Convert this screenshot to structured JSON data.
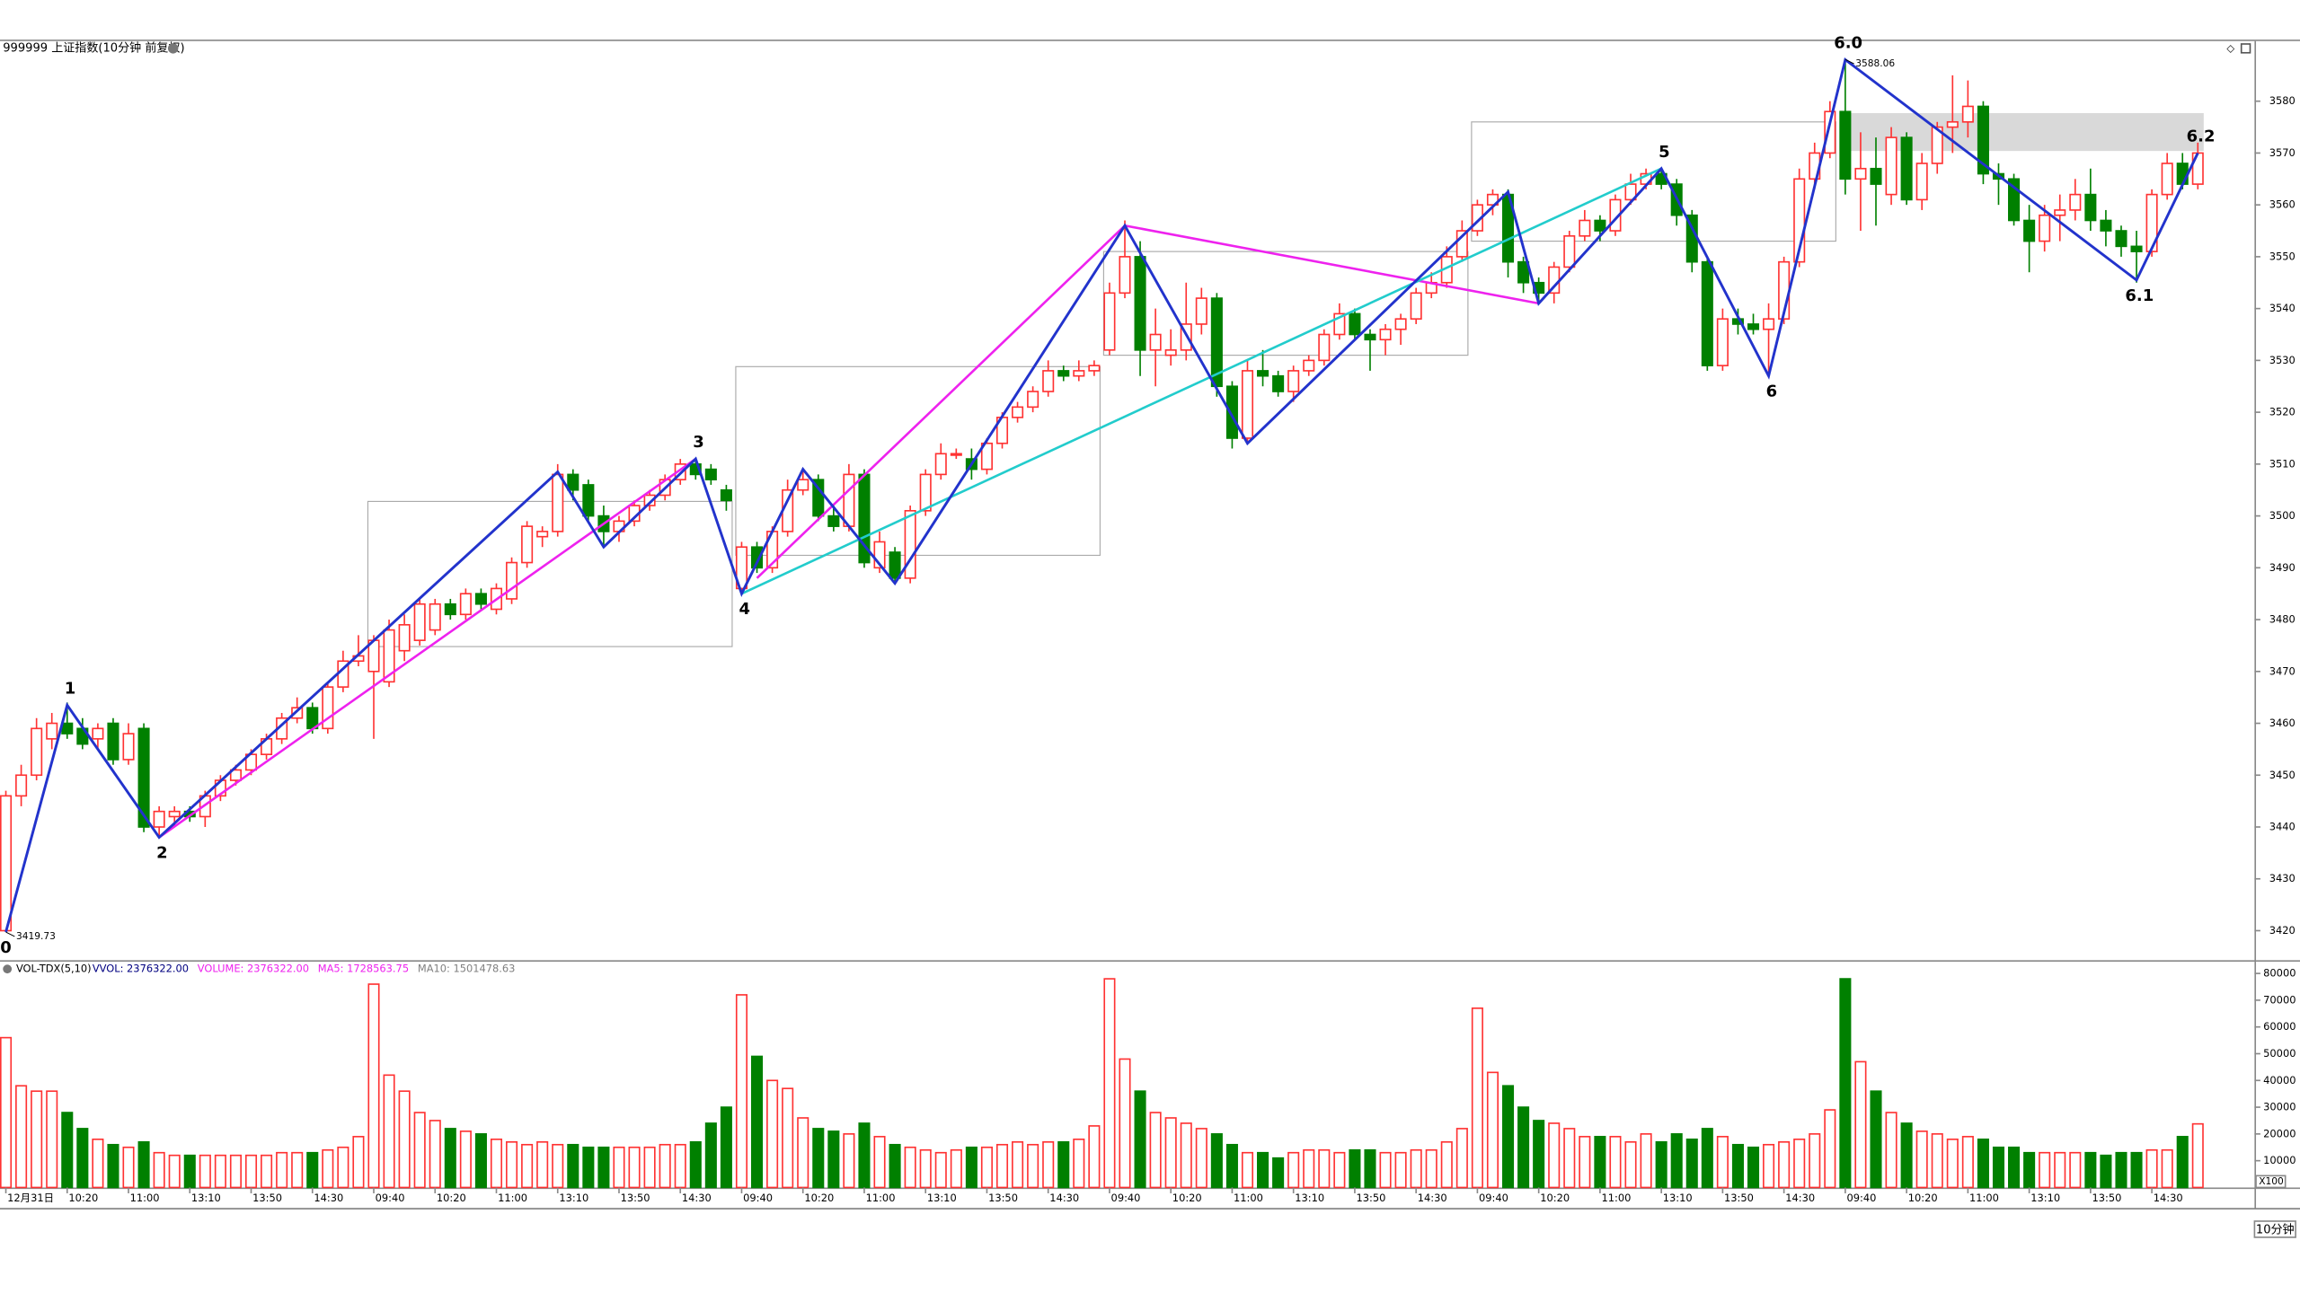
{
  "chart_data": {
    "type": "candlestick",
    "title": "999999 上证指数(10分钟 前复权)",
    "period_label": "10分钟",
    "up_color": "#ff3232",
    "down_color": "#008000",
    "ylim": [
      3414.3,
      3591.6
    ],
    "yticks": [
      3420,
      3430,
      3440,
      3450,
      3460,
      3470,
      3480,
      3490,
      3500,
      3510,
      3520,
      3530,
      3540,
      3550,
      3560,
      3570,
      3580
    ],
    "ohlc": [
      [
        3420,
        3447,
        3419.73,
        3446
      ],
      [
        3446,
        3452,
        3444,
        3450
      ],
      [
        3450,
        3461,
        3449,
        3459
      ],
      [
        3457,
        3462,
        3455,
        3460
      ],
      [
        3460,
        3464,
        3457,
        3458
      ],
      [
        3459,
        3461,
        3455,
        3456
      ],
      [
        3457,
        3460,
        3455,
        3459
      ],
      [
        3460,
        3461,
        3452,
        3453
      ],
      [
        3453,
        3460,
        3452,
        3458
      ],
      [
        3459,
        3460,
        3439,
        3440
      ],
      [
        3440,
        3444,
        3438,
        3443
      ],
      [
        3442,
        3444,
        3440,
        3443
      ],
      [
        3443,
        3444,
        3441,
        3442
      ],
      [
        3442,
        3447,
        3440,
        3446
      ],
      [
        3446,
        3450,
        3445,
        3449
      ],
      [
        3449,
        3452,
        3448,
        3451
      ],
      [
        3451,
        3455,
        3450,
        3454
      ],
      [
        3454,
        3458,
        3453,
        3457
      ],
      [
        3457,
        3462,
        3456,
        3461
      ],
      [
        3461,
        3465,
        3460,
        3463
      ],
      [
        3463,
        3464,
        3458,
        3459
      ],
      [
        3459,
        3468,
        3458,
        3467
      ],
      [
        3467,
        3474,
        3466,
        3472
      ],
      [
        3472,
        3477,
        3471,
        3473
      ],
      [
        3470,
        3477,
        3457,
        3476
      ],
      [
        3468,
        3480,
        3467,
        3478
      ],
      [
        3474,
        3481,
        3472,
        3479
      ],
      [
        3476,
        3484,
        3475,
        3483
      ],
      [
        3478,
        3484,
        3477,
        3483
      ],
      [
        3483,
        3484,
        3480,
        3481
      ],
      [
        3481,
        3486,
        3480,
        3485
      ],
      [
        3485,
        3486,
        3482,
        3483
      ],
      [
        3482,
        3487,
        3481,
        3486
      ],
      [
        3484,
        3492,
        3483,
        3491
      ],
      [
        3491,
        3499,
        3490,
        3498
      ],
      [
        3496,
        3498,
        3494,
        3497
      ],
      [
        3497,
        3510,
        3496,
        3508
      ],
      [
        3508,
        3509,
        3503,
        3505
      ],
      [
        3506,
        3507,
        3499,
        3500
      ],
      [
        3500,
        3502,
        3494,
        3497
      ],
      [
        3497,
        3500,
        3495,
        3499
      ],
      [
        3499,
        3503,
        3498,
        3502
      ],
      [
        3502,
        3505,
        3501,
        3504
      ],
      [
        3504,
        3508,
        3503,
        3507
      ],
      [
        3507,
        3511,
        3506,
        3510
      ],
      [
        3510,
        3511,
        3507,
        3508
      ],
      [
        3509,
        3510,
        3506,
        3507
      ],
      [
        3505,
        3506,
        3501,
        3503
      ],
      [
        3486,
        3495,
        3485,
        3494
      ],
      [
        3494,
        3495,
        3489,
        3490
      ],
      [
        3490,
        3498,
        3489,
        3497
      ],
      [
        3497,
        3507,
        3496,
        3505
      ],
      [
        3505,
        3509,
        3504,
        3507
      ],
      [
        3507,
        3508,
        3499,
        3500
      ],
      [
        3500,
        3502,
        3497,
        3498
      ],
      [
        3498,
        3510,
        3497,
        3508
      ],
      [
        3508,
        3509,
        3490,
        3491
      ],
      [
        3490,
        3497,
        3489,
        3495
      ],
      [
        3493,
        3494,
        3487,
        3488
      ],
      [
        3488,
        3502,
        3487,
        3501
      ],
      [
        3501,
        3509,
        3500,
        3508
      ],
      [
        3508,
        3514,
        3507,
        3512
      ],
      [
        3512,
        3513,
        3511,
        3512
      ],
      [
        3511,
        3513,
        3507,
        3509
      ],
      [
        3509,
        3515,
        3508,
        3514
      ],
      [
        3514,
        3520,
        3513,
        3519
      ],
      [
        3519,
        3522,
        3518,
        3521
      ],
      [
        3521,
        3525,
        3520,
        3524
      ],
      [
        3524,
        3530,
        3523,
        3528
      ],
      [
        3528,
        3529,
        3526,
        3527
      ],
      [
        3527,
        3530,
        3526,
        3528
      ],
      [
        3528,
        3530,
        3527,
        3529
      ],
      [
        3532,
        3545,
        3531,
        3543
      ],
      [
        3543,
        3557,
        3542,
        3550
      ],
      [
        3550,
        3553,
        3527,
        3532
      ],
      [
        3532,
        3540,
        3525,
        3535
      ],
      [
        3531,
        3536,
        3529,
        3532
      ],
      [
        3532,
        3545,
        3530,
        3537
      ],
      [
        3537,
        3544,
        3535,
        3542
      ],
      [
        3542,
        3543,
        3523,
        3525
      ],
      [
        3525,
        3526,
        3513,
        3515
      ],
      [
        3515,
        3530,
        3514,
        3528
      ],
      [
        3528,
        3532,
        3525,
        3527
      ],
      [
        3527,
        3528,
        3523,
        3524
      ],
      [
        3524,
        3529,
        3522,
        3528
      ],
      [
        3528,
        3531,
        3527,
        3530
      ],
      [
        3530,
        3536,
        3529,
        3535
      ],
      [
        3535,
        3541,
        3534,
        3539
      ],
      [
        3539,
        3540,
        3534,
        3535
      ],
      [
        3535,
        3536,
        3528,
        3534
      ],
      [
        3534,
        3537,
        3531,
        3536
      ],
      [
        3536,
        3539,
        3533,
        3538
      ],
      [
        3538,
        3544,
        3537,
        3543
      ],
      [
        3543,
        3547,
        3542,
        3545
      ],
      [
        3545,
        3552,
        3544,
        3550
      ],
      [
        3550,
        3557,
        3549,
        3555
      ],
      [
        3555,
        3561,
        3554,
        3560
      ],
      [
        3560,
        3563,
        3558,
        3562
      ],
      [
        3562,
        3563,
        3546,
        3549
      ],
      [
        3549,
        3550,
        3543,
        3545
      ],
      [
        3545,
        3546,
        3541,
        3543
      ],
      [
        3543,
        3549,
        3541,
        3548
      ],
      [
        3548,
        3555,
        3547,
        3554
      ],
      [
        3554,
        3559,
        3553,
        3557
      ],
      [
        3557,
        3558,
        3553,
        3555
      ],
      [
        3555,
        3562,
        3554,
        3561
      ],
      [
        3561,
        3566,
        3560,
        3564
      ],
      [
        3564,
        3567,
        3563,
        3566
      ],
      [
        3566,
        3567,
        3563,
        3564
      ],
      [
        3564,
        3565,
        3556,
        3558
      ],
      [
        3558,
        3559,
        3547,
        3549
      ],
      [
        3549,
        3550,
        3528,
        3529
      ],
      [
        3529,
        3540,
        3528,
        3538
      ],
      [
        3538,
        3540,
        3535,
        3537
      ],
      [
        3537,
        3539,
        3535,
        3536
      ],
      [
        3536,
        3541,
        3527,
        3538
      ],
      [
        3538,
        3550,
        3537,
        3549
      ],
      [
        3549,
        3567,
        3548,
        3565
      ],
      [
        3565,
        3572,
        3563,
        3570
      ],
      [
        3570,
        3580,
        3569,
        3578
      ],
      [
        3578,
        3588.06,
        3562,
        3565
      ],
      [
        3565,
        3574,
        3555,
        3567
      ],
      [
        3567,
        3573,
        3556,
        3564
      ],
      [
        3562,
        3575,
        3560,
        3573
      ],
      [
        3573,
        3574,
        3560,
        3561
      ],
      [
        3561,
        3570,
        3559,
        3568
      ],
      [
        3568,
        3576,
        3566,
        3575
      ],
      [
        3575,
        3585,
        3570,
        3576
      ],
      [
        3576,
        3584,
        3573,
        3579
      ],
      [
        3579,
        3580,
        3564,
        3566
      ],
      [
        3566,
        3568,
        3560,
        3565
      ],
      [
        3565,
        3566,
        3556,
        3557
      ],
      [
        3557,
        3560,
        3547,
        3553
      ],
      [
        3553,
        3560,
        3551,
        3558
      ],
      [
        3558,
        3562,
        3553,
        3559
      ],
      [
        3559,
        3565,
        3557,
        3562
      ],
      [
        3562,
        3567,
        3555,
        3557
      ],
      [
        3557,
        3559,
        3552,
        3555
      ],
      [
        3555,
        3556,
        3550,
        3552
      ],
      [
        3552,
        3555,
        3545,
        3551
      ],
      [
        3551,
        3563,
        3550,
        3562
      ],
      [
        3562,
        3570,
        3561,
        3568
      ],
      [
        3568,
        3570,
        3563,
        3564
      ],
      [
        3564,
        3572,
        3563,
        3570
      ]
    ],
    "annotations": [
      {
        "bar": 0,
        "price": 3419.73,
        "label": "3419.73"
      },
      {
        "bar": 120,
        "price": 3588.06,
        "label": "3588.06"
      }
    ],
    "zigzag": {
      "color": "#2233cc",
      "points": [
        {
          "bar": 0,
          "price": 3419.73,
          "label": "0"
        },
        {
          "bar": 4,
          "price": 3463.5,
          "label": "1"
        },
        {
          "bar": 10,
          "price": 3438,
          "label": "2"
        },
        {
          "bar": 36,
          "price": 3508.5,
          "label": null
        },
        {
          "bar": 39,
          "price": 3494,
          "label": null
        },
        {
          "bar": 45,
          "price": 3511,
          "label": "3"
        },
        {
          "bar": 48,
          "price": 3485,
          "label": "4"
        },
        {
          "bar": 52,
          "price": 3509,
          "label": null
        },
        {
          "bar": 58,
          "price": 3487,
          "label": null
        },
        {
          "bar": 73,
          "price": 3556,
          "label": null
        },
        {
          "bar": 81,
          "price": 3514,
          "label": null
        },
        {
          "bar": 98,
          "price": 3562.5,
          "label": null
        },
        {
          "bar": 100,
          "price": 3541,
          "label": null
        },
        {
          "bar": 108,
          "price": 3567,
          "label": "5"
        },
        {
          "bar": 115,
          "price": 3527,
          "label": "6"
        },
        {
          "bar": 120,
          "price": 3588,
          "label": "6.0"
        },
        {
          "bar": 139,
          "price": 3545.5,
          "label": "6.1"
        },
        {
          "bar": 143,
          "price": 3570,
          "label": "6.2"
        }
      ]
    },
    "trend_lines": [
      {
        "color": "#ee22ee",
        "points": [
          [
            10,
            3438
          ],
          [
            45,
            3511
          ]
        ]
      },
      {
        "color": "#ee22ee",
        "points": [
          [
            49,
            3488
          ],
          [
            73,
            3556
          ],
          [
            100,
            3541
          ]
        ]
      },
      {
        "color": "#22cccc",
        "points": [
          [
            48,
            3485
          ],
          [
            108,
            3567
          ]
        ]
      }
    ],
    "boxes": [
      {
        "bars": [
          24,
          47
        ],
        "prices": [
          3474.8,
          3502.8
        ],
        "filled": false
      },
      {
        "bars": [
          48,
          71
        ],
        "prices": [
          3492.4,
          3528.8
        ],
        "filled": false
      },
      {
        "bars": [
          72,
          95
        ],
        "prices": [
          3531,
          3551
        ],
        "filled": false
      },
      {
        "bars": [
          96,
          119
        ],
        "prices": [
          3553,
          3576
        ],
        "filled": false
      },
      {
        "bars": [
          120,
          143
        ],
        "prices": [
          3570.4,
          3577.7
        ],
        "filled": true
      }
    ],
    "x_labels": [
      {
        "bar": 0,
        "label": "12月31日"
      },
      {
        "bar": 4,
        "label": "10:20"
      },
      {
        "bar": 8,
        "label": "11:00"
      },
      {
        "bar": 12,
        "label": "13:10"
      },
      {
        "bar": 16,
        "label": "13:50"
      },
      {
        "bar": 20,
        "label": "14:30"
      },
      {
        "bar": 24,
        "label": "09:40"
      },
      {
        "bar": 28,
        "label": "10:20"
      },
      {
        "bar": 32,
        "label": "11:00"
      },
      {
        "bar": 36,
        "label": "13:10"
      },
      {
        "bar": 40,
        "label": "13:50"
      },
      {
        "bar": 44,
        "label": "14:30"
      },
      {
        "bar": 48,
        "label": "09:40"
      },
      {
        "bar": 52,
        "label": "10:20"
      },
      {
        "bar": 56,
        "label": "11:00"
      },
      {
        "bar": 60,
        "label": "13:10"
      },
      {
        "bar": 64,
        "label": "13:50"
      },
      {
        "bar": 68,
        "label": "14:30"
      },
      {
        "bar": 72,
        "label": "09:40"
      },
      {
        "bar": 76,
        "label": "10:20"
      },
      {
        "bar": 80,
        "label": "11:00"
      },
      {
        "bar": 84,
        "label": "13:10"
      },
      {
        "bar": 88,
        "label": "13:50"
      },
      {
        "bar": 92,
        "label": "14:30"
      },
      {
        "bar": 96,
        "label": "09:40"
      },
      {
        "bar": 100,
        "label": "10:20"
      },
      {
        "bar": 104,
        "label": "11:00"
      },
      {
        "bar": 108,
        "label": "13:10"
      },
      {
        "bar": 112,
        "label": "13:50"
      },
      {
        "bar": 116,
        "label": "14:30"
      },
      {
        "bar": 120,
        "label": "09:40"
      },
      {
        "bar": 124,
        "label": "10:20"
      },
      {
        "bar": 128,
        "label": "11:00"
      },
      {
        "bar": 132,
        "label": "13:10"
      },
      {
        "bar": 136,
        "label": "13:50"
      },
      {
        "bar": 140,
        "label": "14:30"
      }
    ],
    "volume": {
      "title": "VOL-TDX(5,10)",
      "legend": [
        {
          "label": "VVOL: 2376322.00",
          "color": "#000080"
        },
        {
          "label": "VOLUME: 2376322.00",
          "color": "#ee22ee"
        },
        {
          "label": "MA5: 1728563.75",
          "color": "#ee22ee"
        },
        {
          "label": "MA10: 1501478.63",
          "color": "#808080"
        }
      ],
      "unit_label": "X100",
      "ylim": [
        0,
        83300
      ],
      "yticks": [
        10000,
        20000,
        30000,
        40000,
        50000,
        60000,
        70000,
        80000
      ],
      "values": [
        56000,
        38000,
        36000,
        36000,
        28000,
        22000,
        18000,
        16000,
        15000,
        17000,
        13000,
        12000,
        12000,
        12000,
        12000,
        12000,
        12000,
        12000,
        13000,
        13000,
        13000,
        14000,
        15000,
        19000,
        76000,
        42000,
        36000,
        28000,
        25000,
        22000,
        21000,
        20000,
        18000,
        17000,
        16000,
        17000,
        16000,
        16000,
        15000,
        15000,
        15000,
        15000,
        15000,
        16000,
        16000,
        17000,
        24000,
        30000,
        72000,
        49000,
        40000,
        37000,
        26000,
        22000,
        21000,
        20000,
        24000,
        19000,
        16000,
        15000,
        14000,
        13000,
        14000,
        15000,
        15000,
        16000,
        17000,
        16000,
        17000,
        17000,
        18000,
        23000,
        78000,
        48000,
        36000,
        28000,
        26000,
        24000,
        22000,
        20000,
        16000,
        13000,
        13000,
        11000,
        13000,
        14000,
        14000,
        13000,
        14000,
        14000,
        13000,
        13000,
        14000,
        14000,
        17000,
        22000,
        67000,
        43000,
        38000,
        30000,
        25000,
        24000,
        22000,
        19000,
        19000,
        19000,
        17000,
        20000,
        17000,
        20000,
        18000,
        22000,
        19000,
        16000,
        15000,
        16000,
        17000,
        18000,
        20000,
        29000,
        78000,
        47000,
        36000,
        28000,
        24000,
        21000,
        20000,
        18000,
        19000,
        18000,
        15000,
        15000,
        13000,
        13000,
        13000,
        13000,
        13000,
        12000,
        13000,
        13000,
        14000,
        14000,
        19000,
        23763
      ]
    }
  }
}
